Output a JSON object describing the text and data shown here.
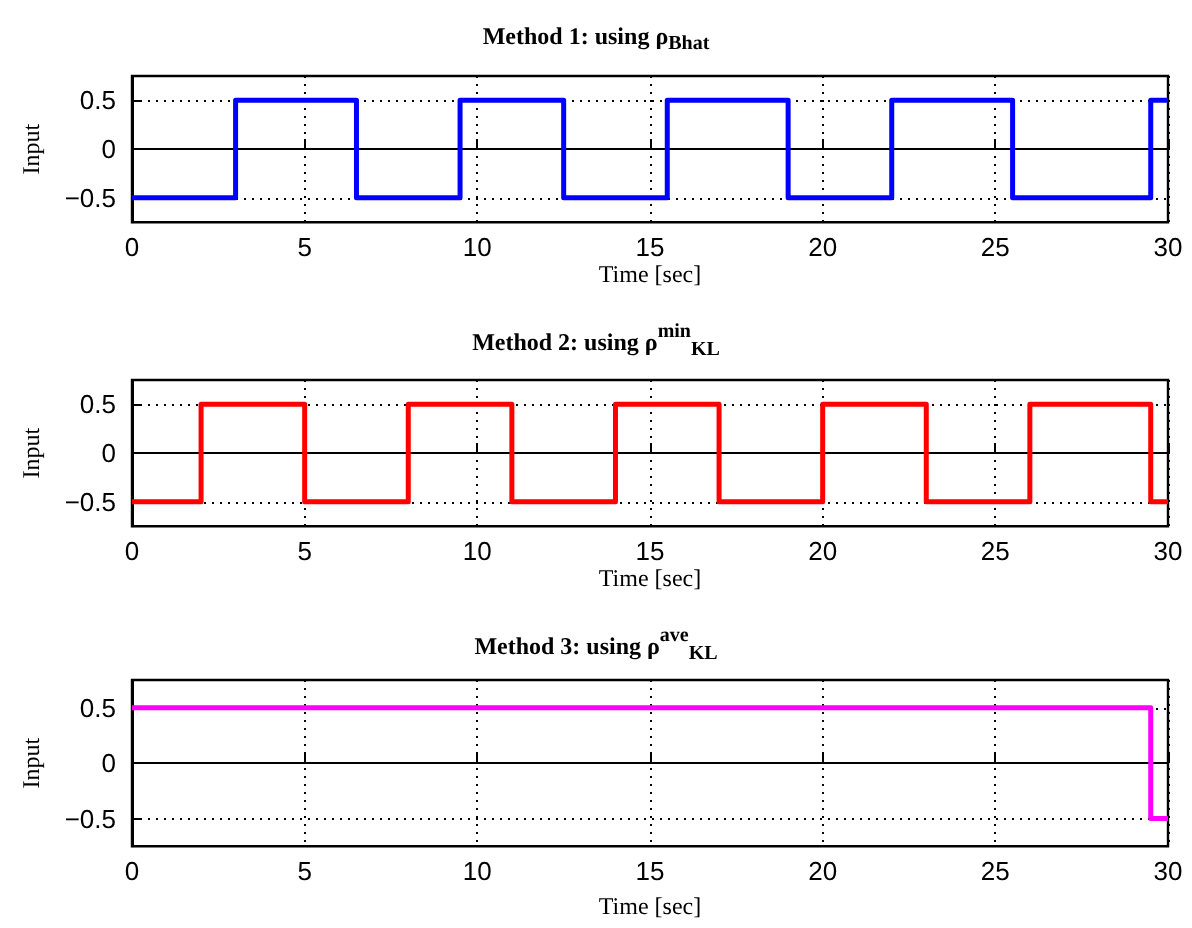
{
  "chart_data": [
    {
      "type": "step",
      "title": "Method 1: using ρ$_{Bhat}$",
      "xlabel": "Time [sec]",
      "ylabel": "Input",
      "x": [
        0,
        3,
        6.5,
        9.5,
        12.5,
        15.5,
        19,
        22,
        25.5,
        29.5,
        30
      ],
      "values": [
        -0.5,
        0.5,
        -0.5,
        0.5,
        -0.5,
        0.5,
        -0.5,
        0.5,
        -0.5,
        0.5,
        0.5
      ],
      "color": "#0000ff",
      "xlim": [
        0,
        30
      ],
      "xticks": [
        0,
        5,
        10,
        15,
        20,
        25,
        30
      ],
      "ylim": [
        -0.75,
        0.75
      ],
      "yticks": [
        -0.5,
        0,
        0.5
      ],
      "grid": true,
      "line_style": "solid"
    },
    {
      "type": "step",
      "title": "Method 2: using ρ$^{min}$$_{KL}$",
      "xlabel": "Time [sec]",
      "ylabel": "Input",
      "x": [
        0,
        2,
        5,
        8,
        11,
        14,
        17,
        20,
        23,
        26,
        29.5,
        30
      ],
      "values": [
        -0.5,
        0.5,
        -0.5,
        0.5,
        -0.5,
        0.5,
        -0.5,
        0.5,
        -0.5,
        0.5,
        -0.5,
        -0.5
      ],
      "color": "#ff0000",
      "xlim": [
        0,
        30
      ],
      "xticks": [
        0,
        5,
        10,
        15,
        20,
        25,
        30
      ],
      "ylim": [
        -0.75,
        0.75
      ],
      "yticks": [
        -0.5,
        0,
        0.5
      ],
      "grid": true,
      "line_style": "solid"
    },
    {
      "type": "step",
      "title": "Method 3: using ρ$^{ave}$$_{KL}$",
      "xlabel": "Time [sec]",
      "ylabel": "Input",
      "x": [
        0,
        29.5,
        30
      ],
      "values": [
        0.5,
        -0.5,
        -0.5
      ],
      "color": "#ff00ff",
      "xlim": [
        0,
        30
      ],
      "xticks": [
        0,
        5,
        10,
        15,
        20,
        25,
        30
      ],
      "ylim": [
        -0.75,
        0.75
      ],
      "yticks": [
        -0.5,
        0,
        0.5
      ],
      "grid": true,
      "line_style": "solid"
    }
  ]
}
